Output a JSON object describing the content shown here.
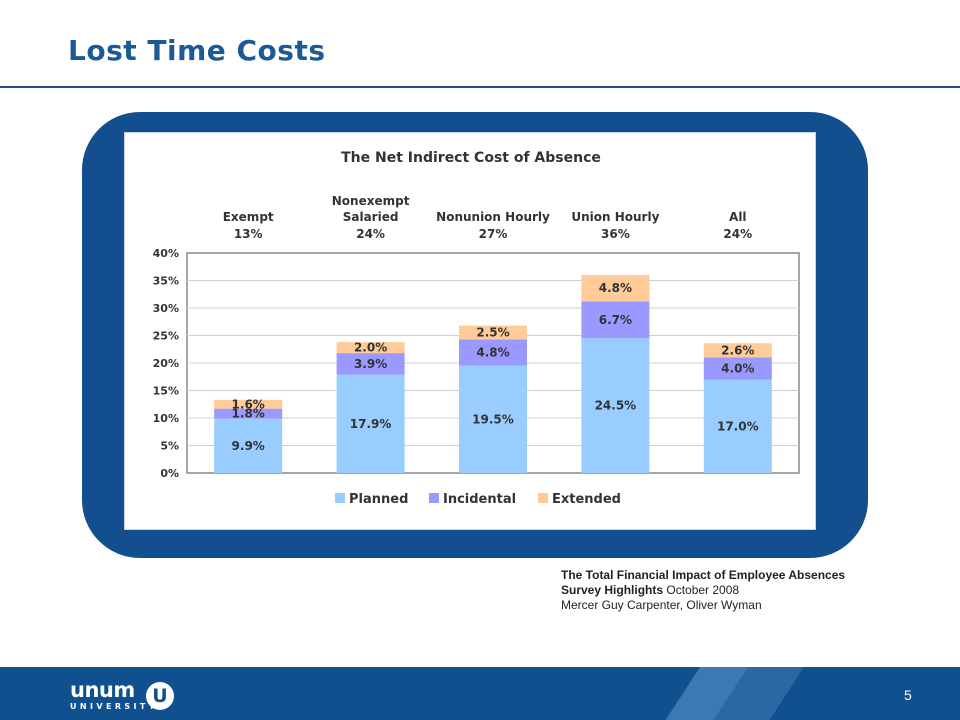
{
  "slide": {
    "title": "Lost Time Costs",
    "source_line1": "The Total Financial Impact of Employee Absences",
    "source_line2_bold": "Survey Highlights",
    "source_line2_rest": " October 2008",
    "source_line3": "Mercer  Guy Carpenter, Oliver Wyman",
    "page_number": "5"
  },
  "footer": {
    "logo_word": "unum",
    "logo_sub": "UNIVERSITY",
    "logo_mark": "U"
  },
  "colors": {
    "title": "#1c5a96",
    "frame": "#134f8f",
    "planned": "#99ccff",
    "incidental": "#9999ff",
    "extended": "#ffcc99"
  },
  "chart_data": {
    "type": "bar",
    "stacked": true,
    "title": "The Net Indirect Cost of Absence",
    "categories": [
      "Exempt",
      "Nonexempt Salaried",
      "Nonunion Hourly",
      "Union Hourly",
      "All"
    ],
    "category_labels": [
      [
        "Exempt"
      ],
      [
        "Nonexempt",
        "Salaried"
      ],
      [
        "Nonunion Hourly"
      ],
      [
        "Union Hourly"
      ],
      [
        "All"
      ]
    ],
    "category_totals": [
      "13%",
      "24%",
      "27%",
      "36%",
      "24%"
    ],
    "series": [
      {
        "name": "Planned",
        "values": [
          9.9,
          17.9,
          19.5,
          24.5,
          17.0
        ],
        "labels": [
          "9.9%",
          "17.9%",
          "19.5%",
          "24.5%",
          "17.0%"
        ]
      },
      {
        "name": "Incidental",
        "values": [
          1.8,
          3.9,
          4.8,
          6.7,
          4.0
        ],
        "labels": [
          "1.8%",
          "3.9%",
          "4.8%",
          "6.7%",
          "4.0%"
        ]
      },
      {
        "name": "Extended",
        "values": [
          1.6,
          2.0,
          2.5,
          4.8,
          2.6
        ],
        "labels": [
          "1.6%",
          "2.0%",
          "2.5%",
          "4.8%",
          "2.6%"
        ]
      }
    ],
    "ylim": [
      0,
      40
    ],
    "yticks": [
      "0%",
      "5%",
      "10%",
      "15%",
      "20%",
      "25%",
      "30%",
      "35%",
      "40%"
    ],
    "grid": true,
    "legend_position": "bottom"
  }
}
